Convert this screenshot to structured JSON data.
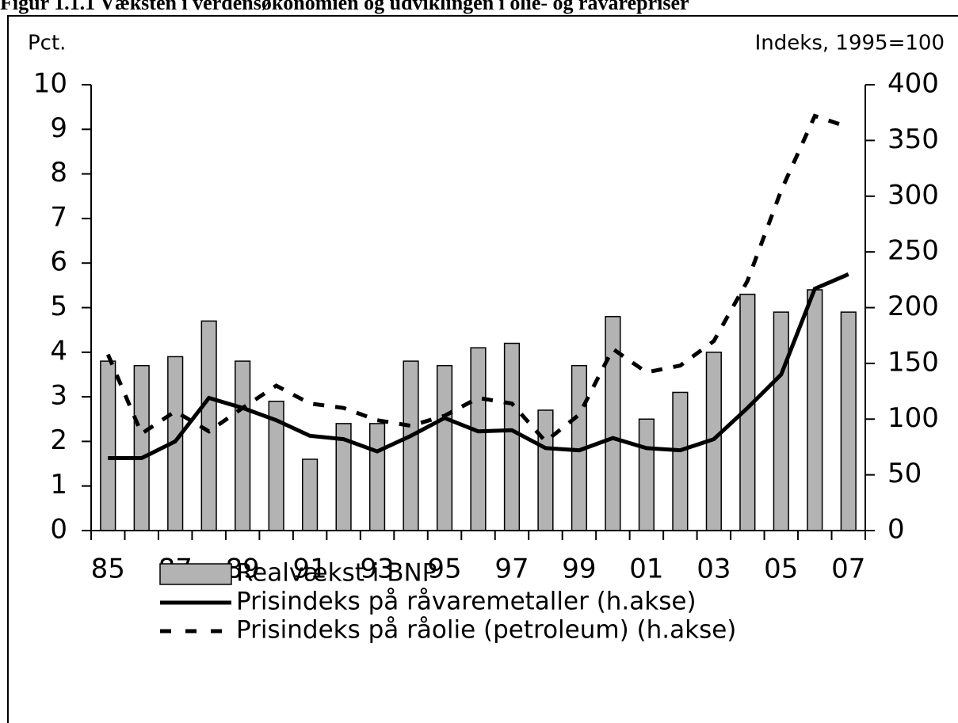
{
  "chart_data": {
    "type": "bar-line",
    "title": "Figur 1.1.1 Væksten i verdensøkonomien og udviklingen i olie- og råvarepriser",
    "y_label": "Pct.",
    "y2_label": "Indeks, 1995=100",
    "categories": [
      "85",
      null,
      "87",
      null,
      "89",
      null,
      "91",
      null,
      "93",
      null,
      "95",
      null,
      "97",
      null,
      "99",
      null,
      "01",
      null,
      "03",
      null,
      "05",
      null,
      "07"
    ],
    "series": [
      {
        "name": "Realvækst i BNP",
        "type": "bar",
        "color": "#b3b3b3",
        "values": [
          3.8,
          3.7,
          3.9,
          4.7,
          3.8,
          2.9,
          1.6,
          2.4,
          2.4,
          3.8,
          3.7,
          4.1,
          4.2,
          2.7,
          3.7,
          4.8,
          2.5,
          3.1,
          4.0,
          5.3,
          4.9,
          5.4,
          4.9
        ]
      },
      {
        "name": "Prisindeks på råvaremetaller (h.akse)",
        "type": "line",
        "axis": "y2",
        "color": "#000000",
        "line_style": "solid",
        "values": [
          65,
          65,
          80,
          119,
          110,
          99,
          85,
          82,
          71,
          85,
          101,
          89,
          90,
          74,
          72,
          83,
          74,
          72,
          82,
          110,
          140,
          217,
          230
        ]
      },
      {
        "name": "Prisindeks på råolie (petroleum) (h.akse)",
        "type": "line",
        "axis": "y2",
        "color": "#000000",
        "line_style": "dashed",
        "values": [
          158,
          87,
          107,
          89,
          110,
          130,
          114,
          110,
          99,
          94,
          103,
          119,
          114,
          80,
          104,
          163,
          142,
          148,
          170,
          224,
          305,
          372,
          362
        ]
      }
    ],
    "ylim": [
      0,
      10
    ],
    "yticks": [
      0,
      1,
      2,
      3,
      4,
      5,
      6,
      7,
      8,
      9,
      10
    ],
    "y2lim": [
      0,
      400
    ],
    "y2ticks": [
      0,
      50,
      100,
      150,
      200,
      250,
      300,
      350,
      400
    ]
  }
}
